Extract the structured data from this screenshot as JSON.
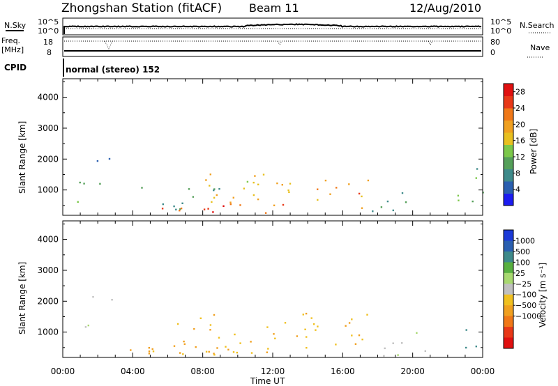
{
  "header": {
    "station": "Zhongshan Station (fitACF)",
    "beam": "Beam 11",
    "date": "12/Aug/2010"
  },
  "strips": {
    "nsky_label": "N.Sky",
    "nsky_top": "10^5",
    "nsky_bottom": "10^0",
    "nsearch_top": "10^5",
    "nsearch_bottom": "10^0",
    "nsearch_label": "N.Search",
    "freq_label": "Freq.",
    "freq_unit": "[MHz]",
    "freq_top": "18",
    "freq_bottom": "8",
    "nave_top": "80",
    "nave_bottom": "0",
    "nave_label": "Nave",
    "cpid_label": "CPID",
    "cpid_value": "normal (stereo) 152"
  },
  "chart_data": [
    {
      "type": "heatmap",
      "title": "",
      "xlabel": "Time UT",
      "ylabel": "Slant Range [km]",
      "ylim": [
        180,
        4600
      ],
      "yticks": [
        "1000",
        "2000",
        "3000",
        "4000"
      ],
      "xlim": [
        "00:00",
        "24:00"
      ],
      "xticks": [
        "00:00",
        "04:00",
        "08:00",
        "12:00",
        "16:00",
        "20:00",
        "00:00"
      ],
      "colorbar": {
        "label": "Power [dB]",
        "ticks": [
          "4",
          "8",
          "12",
          "16",
          "20",
          "24",
          "28"
        ],
        "colors": [
          "#1c1cf0",
          "#2a5fb0",
          "#3e8a8a",
          "#55a05a",
          "#7cc84a",
          "#e8c020",
          "#f0a020",
          "#f07818",
          "#e83818",
          "#e01010"
        ],
        "range": [
          0,
          30
        ]
      },
      "scatter_regions": [
        {
          "t0": 0.8,
          "t1": 2.2,
          "r0": 600,
          "r1": 1400,
          "value": 14
        },
        {
          "t0": 1.5,
          "t1": 2.8,
          "r0": 1950,
          "r1": 2350,
          "value": 6
        },
        {
          "t0": 3.5,
          "t1": 9.0,
          "r0": 350,
          "r1": 1100,
          "value": 10
        },
        {
          "t0": 5.5,
          "t1": 14.5,
          "r0": 250,
          "r1": 650,
          "value": 25
        },
        {
          "t0": 8.0,
          "t1": 13.5,
          "r0": 500,
          "r1": 1600,
          "value": 18
        },
        {
          "t0": 14.5,
          "t1": 17.5,
          "r0": 400,
          "r1": 1700,
          "value": 21
        },
        {
          "t0": 17.5,
          "t1": 20.0,
          "r0": 300,
          "r1": 1100,
          "value": 8
        },
        {
          "t0": 22.5,
          "t1": 24.0,
          "r0": 350,
          "r1": 1800,
          "value": 12
        }
      ]
    },
    {
      "type": "heatmap",
      "title": "",
      "xlabel": "Time UT",
      "ylabel": "Slant Range [km]",
      "ylim": [
        180,
        4600
      ],
      "yticks": [
        "1000",
        "2000",
        "3000",
        "4000"
      ],
      "xlim": [
        "00:00",
        "24:00"
      ],
      "xticks": [
        "00:00",
        "04:00",
        "08:00",
        "12:00",
        "16:00",
        "20:00",
        "00:00"
      ],
      "colorbar": {
        "label": "Velocity [m s⁻¹]",
        "ticks": [
          "1000",
          "500",
          "100",
          "25",
          "−25",
          "−100",
          "−500",
          "−1000"
        ],
        "colors": [
          "#1c3ad8",
          "#2a5fb0",
          "#3e8a8a",
          "#58b040",
          "#a8d870",
          "#c0c0c0",
          "#f0c020",
          "#f0a020",
          "#f07818",
          "#e83818",
          "#e01010"
        ],
        "range": [
          -1000,
          1000
        ]
      },
      "scatter_regions": [
        {
          "t0": 0.8,
          "t1": 2.2,
          "r0": 600,
          "r1": 1400,
          "value": 60
        },
        {
          "t0": 1.5,
          "t1": 2.8,
          "r0": 1950,
          "r1": 2350,
          "value": 0
        },
        {
          "t0": 3.5,
          "t1": 9.0,
          "r0": 300,
          "r1": 1200,
          "value": -300
        },
        {
          "t0": 6.5,
          "t1": 14.5,
          "r0": 250,
          "r1": 1700,
          "value": -250
        },
        {
          "t0": 14.5,
          "t1": 17.5,
          "r0": 500,
          "r1": 1700,
          "value": -300
        },
        {
          "t0": 17.5,
          "t1": 21.0,
          "r0": 250,
          "r1": 1100,
          "value": 80
        },
        {
          "t0": 22.5,
          "t1": 24.0,
          "r0": 350,
          "r1": 1800,
          "value": 500
        }
      ]
    }
  ]
}
